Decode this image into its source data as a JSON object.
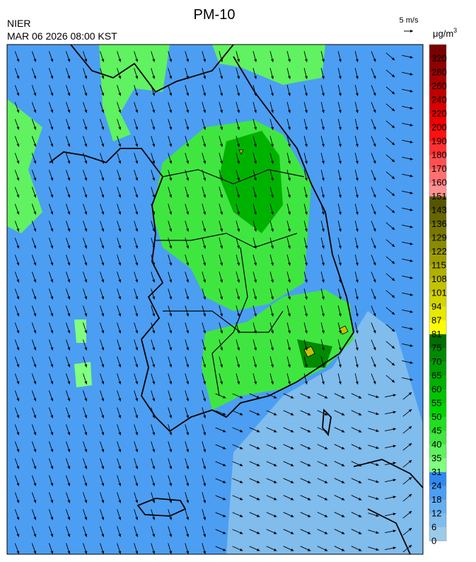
{
  "header": {
    "title": "PM-10",
    "agency": "NIER",
    "datetime": "MAR 06 2026 08:00 KST",
    "wind_scale": "5 m/s",
    "unit": "μg/m",
    "unit_exponent": "3"
  },
  "colorbar": {
    "levels": [
      0,
      6,
      12,
      18,
      24,
      31,
      35,
      40,
      45,
      50,
      55,
      60,
      65,
      70,
      75,
      81,
      87,
      94,
      101,
      108,
      115,
      122,
      129,
      136,
      143,
      151,
      160,
      170,
      180,
      190,
      200,
      220,
      240,
      260,
      280,
      320
    ],
    "colors": [
      "#9ccbea",
      "#80bcec",
      "#66aef0",
      "#4c9ef2",
      "#3088f0",
      "#80ff80",
      "#60f260",
      "#40e640",
      "#1ee01e",
      "#00d400",
      "#00c400",
      "#00b200",
      "#00a000",
      "#008a00",
      "#006e00",
      "#ffff00",
      "#e8e800",
      "#d4d400",
      "#c2c200",
      "#b0b000",
      "#9e9e00",
      "#8a8a00",
      "#787800",
      "#666600",
      "#555500",
      "#ff9090",
      "#ff7070",
      "#ff5050",
      "#ff3030",
      "#ff1010",
      "#f00000",
      "#d80000",
      "#c00000",
      "#a80000",
      "#900000",
      "#780000"
    ]
  }
}
